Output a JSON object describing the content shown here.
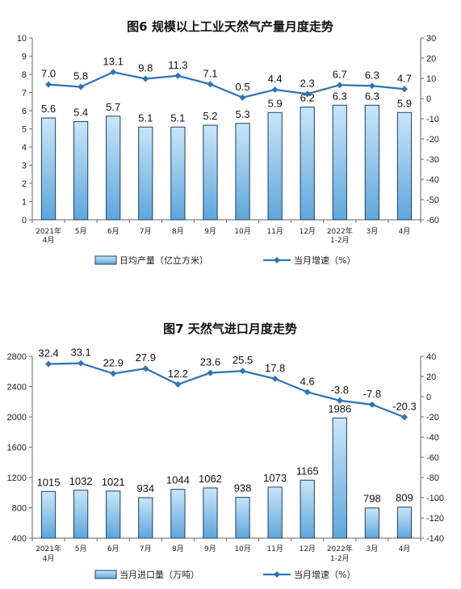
{
  "colors": {
    "bar_fill_top": "#c9e6f8",
    "bar_fill_bottom": "#5fa6dc",
    "bar_stroke": "#1f3f66",
    "line": "#2e74b6",
    "axis": "#666666"
  },
  "chart_data": [
    {
      "type": "bar",
      "title": "图6  规模以上工业天然气产量月度走势",
      "categories": [
        [
          "2021年",
          "4月"
        ],
        [
          "5月"
        ],
        [
          "6月"
        ],
        [
          "7月"
        ],
        [
          "8月"
        ],
        [
          "9月"
        ],
        [
          "10月"
        ],
        [
          "11月"
        ],
        [
          "12月"
        ],
        [
          "2022年",
          "1-2月"
        ],
        [
          "3月"
        ],
        [
          "4月"
        ]
      ],
      "series": [
        {
          "name": "日均产量（亿立方米）",
          "type": "bar",
          "axis": "left",
          "values": [
            5.6,
            5.4,
            5.7,
            5.1,
            5.1,
            5.2,
            5.3,
            5.9,
            6.2,
            6.3,
            6.3,
            5.9
          ],
          "labels": [
            "5.6",
            "5.4",
            "5.7",
            "5.1",
            "5.1",
            "5.2",
            "5.3",
            "5.9",
            "6.2",
            "6.3",
            "6.3",
            "5.9"
          ]
        },
        {
          "name": "当月增速（%）",
          "type": "line",
          "axis": "right",
          "values": [
            7.0,
            5.8,
            13.1,
            9.8,
            11.3,
            7.1,
            0.5,
            4.4,
            2.3,
            6.7,
            6.3,
            4.7
          ],
          "labels": [
            "7.0",
            "5.8",
            "13.1",
            "9.8",
            "11.3",
            "7.1",
            "0.5",
            "4.4",
            "2.3",
            "6.7",
            "6.3",
            "4.7"
          ]
        }
      ],
      "left_axis": {
        "min": 0,
        "max": 10,
        "step": 1,
        "ticks": [
          "0",
          "1",
          "2",
          "3",
          "4",
          "5",
          "6",
          "7",
          "8",
          "9",
          "10"
        ]
      },
      "right_axis": {
        "min": -60,
        "max": 30,
        "step": 10,
        "ticks": [
          "-60",
          "-50",
          "-40",
          "-30",
          "-20",
          "-10",
          "0",
          "10",
          "20",
          "30"
        ]
      },
      "legend_position": "bottom"
    },
    {
      "type": "bar",
      "title": "图7  天然气进口月度走势",
      "categories": [
        [
          "2021年",
          "4月"
        ],
        [
          "5月"
        ],
        [
          "6月"
        ],
        [
          "7月"
        ],
        [
          "8月"
        ],
        [
          "9月"
        ],
        [
          "10月"
        ],
        [
          "11月"
        ],
        [
          "12月"
        ],
        [
          "2022年",
          "1-2月"
        ],
        [
          "3月"
        ],
        [
          "4月"
        ]
      ],
      "series": [
        {
          "name": "当月进口量（万吨）",
          "type": "bar",
          "axis": "left",
          "values": [
            1015,
            1032,
            1021,
            934,
            1044,
            1062,
            938,
            1073,
            1165,
            1986,
            798,
            809
          ],
          "labels": [
            "1015",
            "1032",
            "1021",
            "934",
            "1044",
            "1062",
            "938",
            "1073",
            "1165",
            "1986",
            "798",
            "809"
          ]
        },
        {
          "name": "当月增速（%）",
          "type": "line",
          "axis": "right",
          "values": [
            32.4,
            33.1,
            22.9,
            27.9,
            12.2,
            23.6,
            25.5,
            17.8,
            4.6,
            -3.8,
            -7.8,
            -20.3
          ],
          "labels": [
            "32.4",
            "33.1",
            "22.9",
            "27.9",
            "12.2",
            "23.6",
            "25.5",
            "17.8",
            "4.6",
            "-3.8",
            "-7.8",
            "-20.3"
          ]
        }
      ],
      "left_axis": {
        "min": 400,
        "max": 2800,
        "step": 400,
        "ticks": [
          "400",
          "800",
          "1200",
          "1600",
          "2000",
          "2400",
          "2800"
        ]
      },
      "right_axis": {
        "min": -140,
        "max": 40,
        "step": 20,
        "ticks": [
          "-140",
          "-120",
          "-100",
          "-80",
          "-60",
          "-40",
          "-20",
          "0",
          "20",
          "40"
        ]
      },
      "legend_position": "bottom"
    }
  ]
}
